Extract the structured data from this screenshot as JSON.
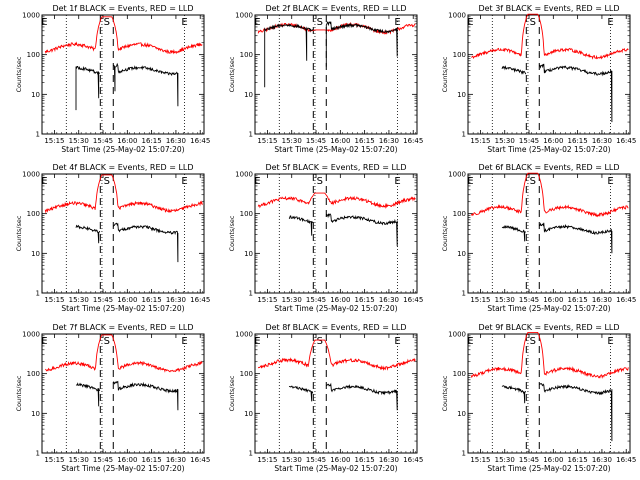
{
  "chart_data": {
    "type": "line",
    "layout_grid": "3x3",
    "y_scale": "log",
    "y_range": [
      1,
      1000
    ],
    "y_ticks": [
      "1",
      "10",
      "100",
      "1000"
    ],
    "y_label": "Counts/sec",
    "x_label": "Start Time (25-May-02 15:07:20)",
    "x_range_min": [
      0,
      100
    ],
    "x_ticks": [
      "15:15",
      "15:30",
      "15:45",
      "16:00",
      "16:15",
      "16:30",
      "16:45"
    ],
    "x_tick_min": [
      7.67,
      22.67,
      37.67,
      52.67,
      67.67,
      82.67,
      97.67
    ],
    "marker_labels": {
      "start": "E",
      "saa": "S",
      "end": "E"
    },
    "marker_min": {
      "start": 1.5,
      "saa_in": 36,
      "saa_out": 44,
      "end": 88
    },
    "dotted_min": [
      15,
      37,
      88
    ],
    "colors": {
      "events": "#000000",
      "lld": "#ff0000"
    },
    "series_names": [
      "BLACK = Events",
      "RED = LLD"
    ],
    "panels": [
      {
        "title": "Det 1f BLACK = Events, RED = LLD",
        "lld_level": 150,
        "events_level": 40,
        "peak": 900,
        "events_start": 21,
        "events_end": 84,
        "lld_start": 2,
        "lld_end": 99,
        "dips": [
          [
            21,
            4
          ],
          [
            35,
            8
          ],
          [
            45,
            12
          ],
          [
            84,
            5
          ]
        ]
      },
      {
        "title": "Det 2f BLACK = Events, RED = LLD",
        "lld_level": 470,
        "events_level": 470,
        "peak": 420,
        "events_start": 6,
        "events_end": 88,
        "lld_start": 2,
        "lld_end": 99,
        "dips": [
          [
            6,
            15
          ],
          [
            32,
            70
          ],
          [
            44,
            50
          ],
          [
            88,
            90
          ]
        ]
      },
      {
        "title": "Det 3f BLACK = Events, RED = LLD",
        "lld_level": 110,
        "events_level": 40,
        "peak": 1050,
        "events_start": 21,
        "events_end": 89,
        "lld_start": 2,
        "lld_end": 99,
        "dips": [
          [
            89,
            2
          ]
        ]
      },
      {
        "title": "Det 4f BLACK = Events, RED = LLD",
        "lld_level": 150,
        "events_level": 40,
        "peak": 950,
        "events_start": 21,
        "events_end": 84,
        "lld_start": 2,
        "lld_end": 99,
        "dips": [
          [
            35,
            18
          ],
          [
            84,
            6
          ]
        ]
      },
      {
        "title": "Det 5f BLACK = Events, RED = LLD",
        "lld_level": 200,
        "events_level": 70,
        "peak": 330,
        "events_start": 21,
        "events_end": 88,
        "lld_start": 2,
        "lld_end": 99,
        "dips": [
          [
            35,
            28
          ],
          [
            88,
            15
          ]
        ]
      },
      {
        "title": "Det 6f BLACK = Events, RED = LLD",
        "lld_level": 120,
        "events_level": 40,
        "peak": 1050,
        "events_start": 21,
        "events_end": 89,
        "lld_start": 2,
        "lld_end": 99,
        "dips": [
          [
            35,
            20
          ],
          [
            89,
            10
          ]
        ]
      },
      {
        "title": "Det 7f BLACK = Events, RED = LLD",
        "lld_level": 150,
        "events_level": 45,
        "peak": 950,
        "events_start": 21,
        "events_end": 84,
        "lld_start": 2,
        "lld_end": 99,
        "dips": [
          [
            35,
            15
          ],
          [
            84,
            12
          ]
        ]
      },
      {
        "title": "Det 8f BLACK = Events, RED = LLD",
        "lld_level": 180,
        "events_level": 40,
        "peak": 700,
        "events_start": 21,
        "events_end": 88,
        "lld_start": 2,
        "lld_end": 99,
        "dips": [
          [
            35,
            20
          ],
          [
            88,
            12
          ]
        ]
      },
      {
        "title": "Det 9f BLACK = Events, RED = LLD",
        "lld_level": 110,
        "events_level": 40,
        "peak": 1100,
        "events_start": 21,
        "events_end": 89,
        "lld_start": 2,
        "lld_end": 99,
        "dips": [
          [
            35,
            18
          ],
          [
            89,
            2
          ]
        ]
      }
    ]
  }
}
